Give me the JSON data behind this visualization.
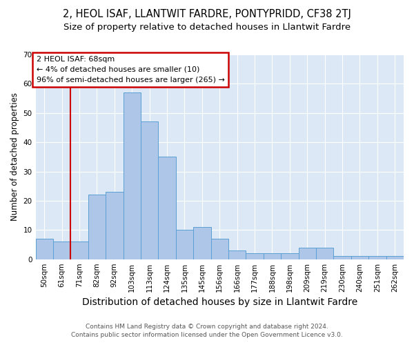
{
  "title": "2, HEOL ISAF, LLANTWIT FARDRE, PONTYPRIDD, CF38 2TJ",
  "subtitle": "Size of property relative to detached houses in Llantwit Fardre",
  "xlabel": "Distribution of detached houses by size in Llantwit Fardre",
  "ylabel": "Number of detached properties",
  "categories": [
    "50sqm",
    "61sqm",
    "71sqm",
    "82sqm",
    "92sqm",
    "103sqm",
    "113sqm",
    "124sqm",
    "135sqm",
    "145sqm",
    "156sqm",
    "166sqm",
    "177sqm",
    "188sqm",
    "198sqm",
    "209sqm",
    "219sqm",
    "230sqm",
    "240sqm",
    "251sqm",
    "262sqm"
  ],
  "values": [
    7,
    6,
    6,
    22,
    23,
    57,
    47,
    35,
    10,
    11,
    7,
    3,
    2,
    2,
    2,
    4,
    4,
    1,
    1,
    1,
    1
  ],
  "bar_color": "#aec6e8",
  "bar_edge_color": "#5a9fd4",
  "bg_color": "#dce8f5",
  "annotation_line1": "2 HEOL ISAF: 68sqm",
  "annotation_line2": "← 4% of detached houses are smaller (10)",
  "annotation_line3": "96% of semi-detached houses are larger (265) →",
  "annotation_box_color": "#ffffff",
  "annotation_box_edge": "#cc0000",
  "vline_color": "#cc0000",
  "vline_x": 1.5,
  "ylim": [
    0,
    70
  ],
  "yticks": [
    0,
    10,
    20,
    30,
    40,
    50,
    60,
    70
  ],
  "footnote": "Contains HM Land Registry data © Crown copyright and database right 2024.\nContains public sector information licensed under the Open Government Licence v3.0.",
  "title_fontsize": 10.5,
  "subtitle_fontsize": 9.5,
  "xlabel_fontsize": 10,
  "ylabel_fontsize": 8.5,
  "tick_fontsize": 7.5,
  "annot_fontsize": 8,
  "footnote_fontsize": 6.5
}
